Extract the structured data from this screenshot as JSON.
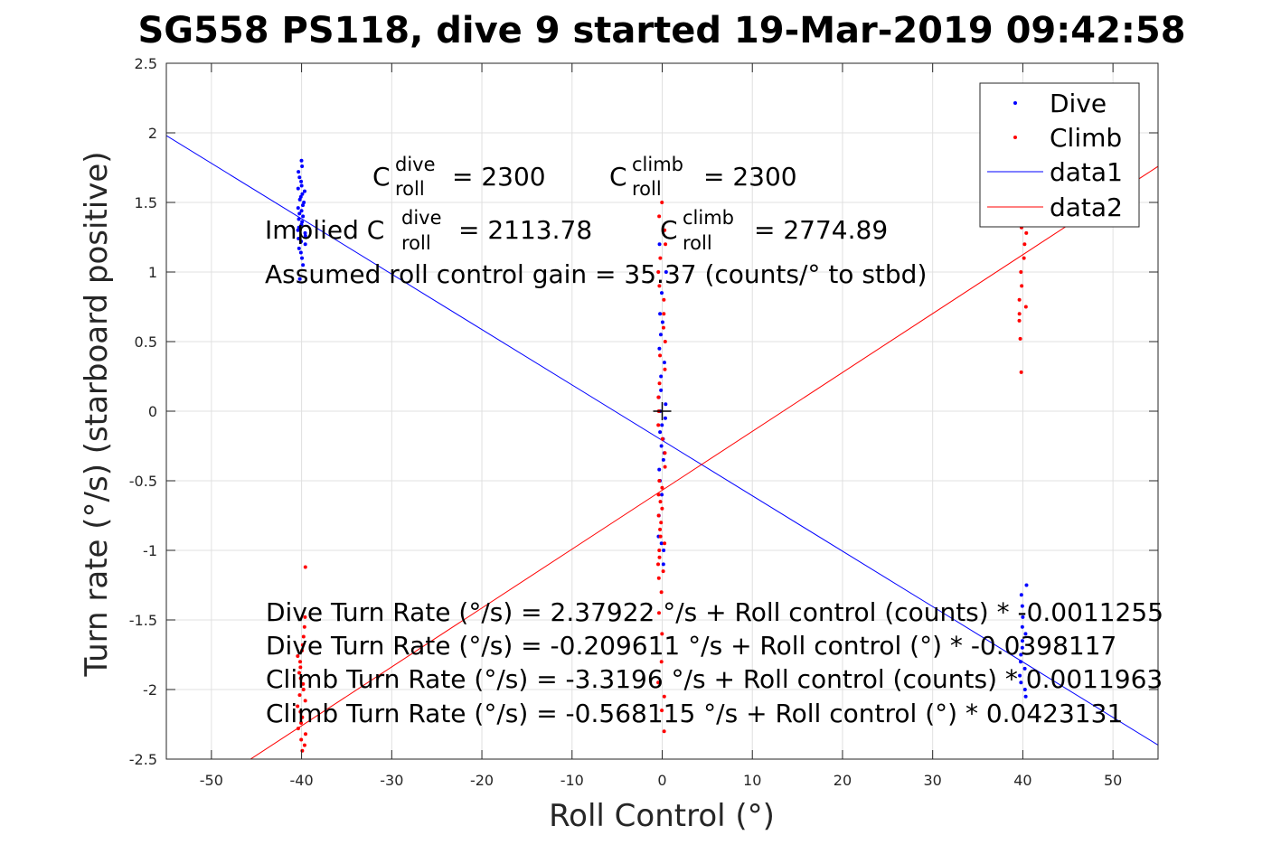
{
  "chart_data": {
    "type": "scatter",
    "title": "SG558 PS118, dive 9 started 19-Mar-2019 09:42:58",
    "xlabel": "Roll Control (°)",
    "ylabel": "Turn rate (°/s) (starboard positive)",
    "xlim": [
      -55,
      55
    ],
    "ylim": [
      -2.5,
      2.5
    ],
    "grid": true,
    "legend_position": "top-right",
    "x_ticks": [
      -50,
      -40,
      -30,
      -20,
      -10,
      0,
      10,
      20,
      30,
      40,
      50
    ],
    "x_tick_labels": [
      "-50",
      "-40",
      "-30",
      "-20",
      "-10",
      "0",
      "10",
      "20",
      "30",
      "40",
      "50"
    ],
    "y_ticks": [
      2.5,
      2,
      1.5,
      1,
      0.5,
      0,
      -0.5,
      -1,
      -1.5,
      -2,
      -2.5
    ],
    "y_tick_labels": [
      "2.5",
      "2",
      "1.5",
      "1",
      "0.5",
      "0",
      "-0.5",
      "-1",
      "-1.5",
      "-2",
      "-2.5"
    ],
    "colors": {
      "dive": "#0000ff",
      "climb": "#ff0000",
      "cross": "#000000"
    },
    "series": [
      {
        "name": "Dive",
        "kind": "points",
        "color": "#0000ff",
        "clusters": [
          {
            "x": -40,
            "y_values": [
              1.8,
              1.76,
              1.72,
              1.68,
              1.65,
              1.62,
              1.6,
              1.58,
              1.56,
              1.54,
              1.52,
              1.5,
              1.48,
              1.46,
              1.44,
              1.42,
              1.4,
              1.38,
              1.36,
              1.34,
              1.32,
              1.3,
              1.28,
              1.26,
              1.24,
              1.22,
              1.2,
              1.17,
              1.14,
              1.1,
              1.05,
              0.95
            ]
          },
          {
            "x": 0,
            "y_values": [
              1.2,
              1.0,
              0.85,
              0.7,
              0.64,
              0.55,
              0.45,
              0.35,
              0.25,
              0.15,
              0.1,
              0.05,
              0.0,
              -0.05,
              -0.1,
              -0.15,
              -0.2,
              -0.25,
              -0.3,
              -0.35,
              -0.42,
              -0.5,
              -0.6,
              -0.75,
              -0.9,
              -0.95,
              -1.0,
              -1.1
            ]
          },
          {
            "x": 40,
            "y_values": [
              -1.25,
              -1.32,
              -1.4,
              -1.48,
              -1.55,
              -1.6,
              -1.65,
              -1.7,
              -1.75,
              -1.8,
              -1.85,
              -1.9,
              -1.95,
              -2.0,
              -2.05
            ]
          }
        ]
      },
      {
        "name": "Climb",
        "kind": "points",
        "color": "#ff0000",
        "clusters": [
          {
            "x": -40,
            "y_values": [
              -1.12,
              -1.48,
              -1.55,
              -1.62,
              -1.68,
              -1.72,
              -1.76,
              -1.8,
              -1.84,
              -1.88,
              -1.92,
              -1.96,
              -2.0,
              -2.04,
              -2.08,
              -2.12,
              -2.16,
              -2.2,
              -2.24,
              -2.28,
              -2.32,
              -2.36,
              -2.4,
              -2.44
            ]
          },
          {
            "x": 0,
            "y_values": [
              1.5,
              1.4,
              1.3,
              1.2,
              1.1,
              1.0,
              0.9,
              0.8,
              0.7,
              0.6,
              0.5,
              0.4,
              0.3,
              0.2,
              0.1,
              0.0,
              -0.1,
              -0.2,
              -0.3,
              -0.4,
              -0.5,
              -0.55,
              -0.6,
              -0.65,
              -0.7,
              -0.75,
              -0.8,
              -0.85,
              -0.9,
              -0.95,
              -1.0,
              -1.05,
              -1.1,
              -1.15,
              -1.2,
              -1.3,
              -1.45,
              -1.6,
              -1.8,
              -1.95,
              -2.05,
              -2.15,
              -2.3
            ]
          },
          {
            "x": 40,
            "y_values": [
              1.32,
              1.28,
              1.2,
              1.1,
              1.0,
              0.9,
              0.8,
              0.75,
              0.7,
              0.65,
              0.52,
              0.28
            ]
          }
        ]
      },
      {
        "name": "data1",
        "kind": "line",
        "color": "#0000ff",
        "intercept": -0.209611,
        "slope": -0.0398117
      },
      {
        "name": "data2",
        "kind": "line",
        "color": "#ff0000",
        "intercept": -0.568115,
        "slope": 0.0423131
      }
    ],
    "marker": {
      "x": 0,
      "y": 0,
      "symbol": "+"
    },
    "annotations": {
      "c_roll_label": "C",
      "c_roll_sub": "roll",
      "dive_sup": "dive",
      "climb_sup": "climb",
      "c_dive_value": "= 2300",
      "c_climb_value": "= 2300",
      "implied_prefix": "Implied C",
      "implied_dive_value": "= 2113.78",
      "implied_climb_value": "= 2774.89",
      "gain": "Assumed roll control gain = 35.37 (counts/° to stbd)",
      "eq1": "Dive Turn Rate (°/s) = 2.37922 °/s + Roll control (counts) * -0.0011255",
      "eq2": "Dive Turn Rate (°/s) = -0.209611 °/s + Roll control (°) * -0.0398117",
      "eq3": "Climb Turn Rate (°/s) = -3.3196 °/s + Roll control (counts) * 0.0011963",
      "eq4": "Climb Turn Rate (°/s) = -0.568115 °/s + Roll control (°) * 0.0423131"
    },
    "legend": [
      {
        "label": "Dive",
        "kind": "point",
        "color": "#0000ff"
      },
      {
        "label": "Climb",
        "kind": "point",
        "color": "#ff0000"
      },
      {
        "label": "data1",
        "kind": "line",
        "color": "#0000ff"
      },
      {
        "label": "data2",
        "kind": "line",
        "color": "#ff0000"
      }
    ]
  }
}
